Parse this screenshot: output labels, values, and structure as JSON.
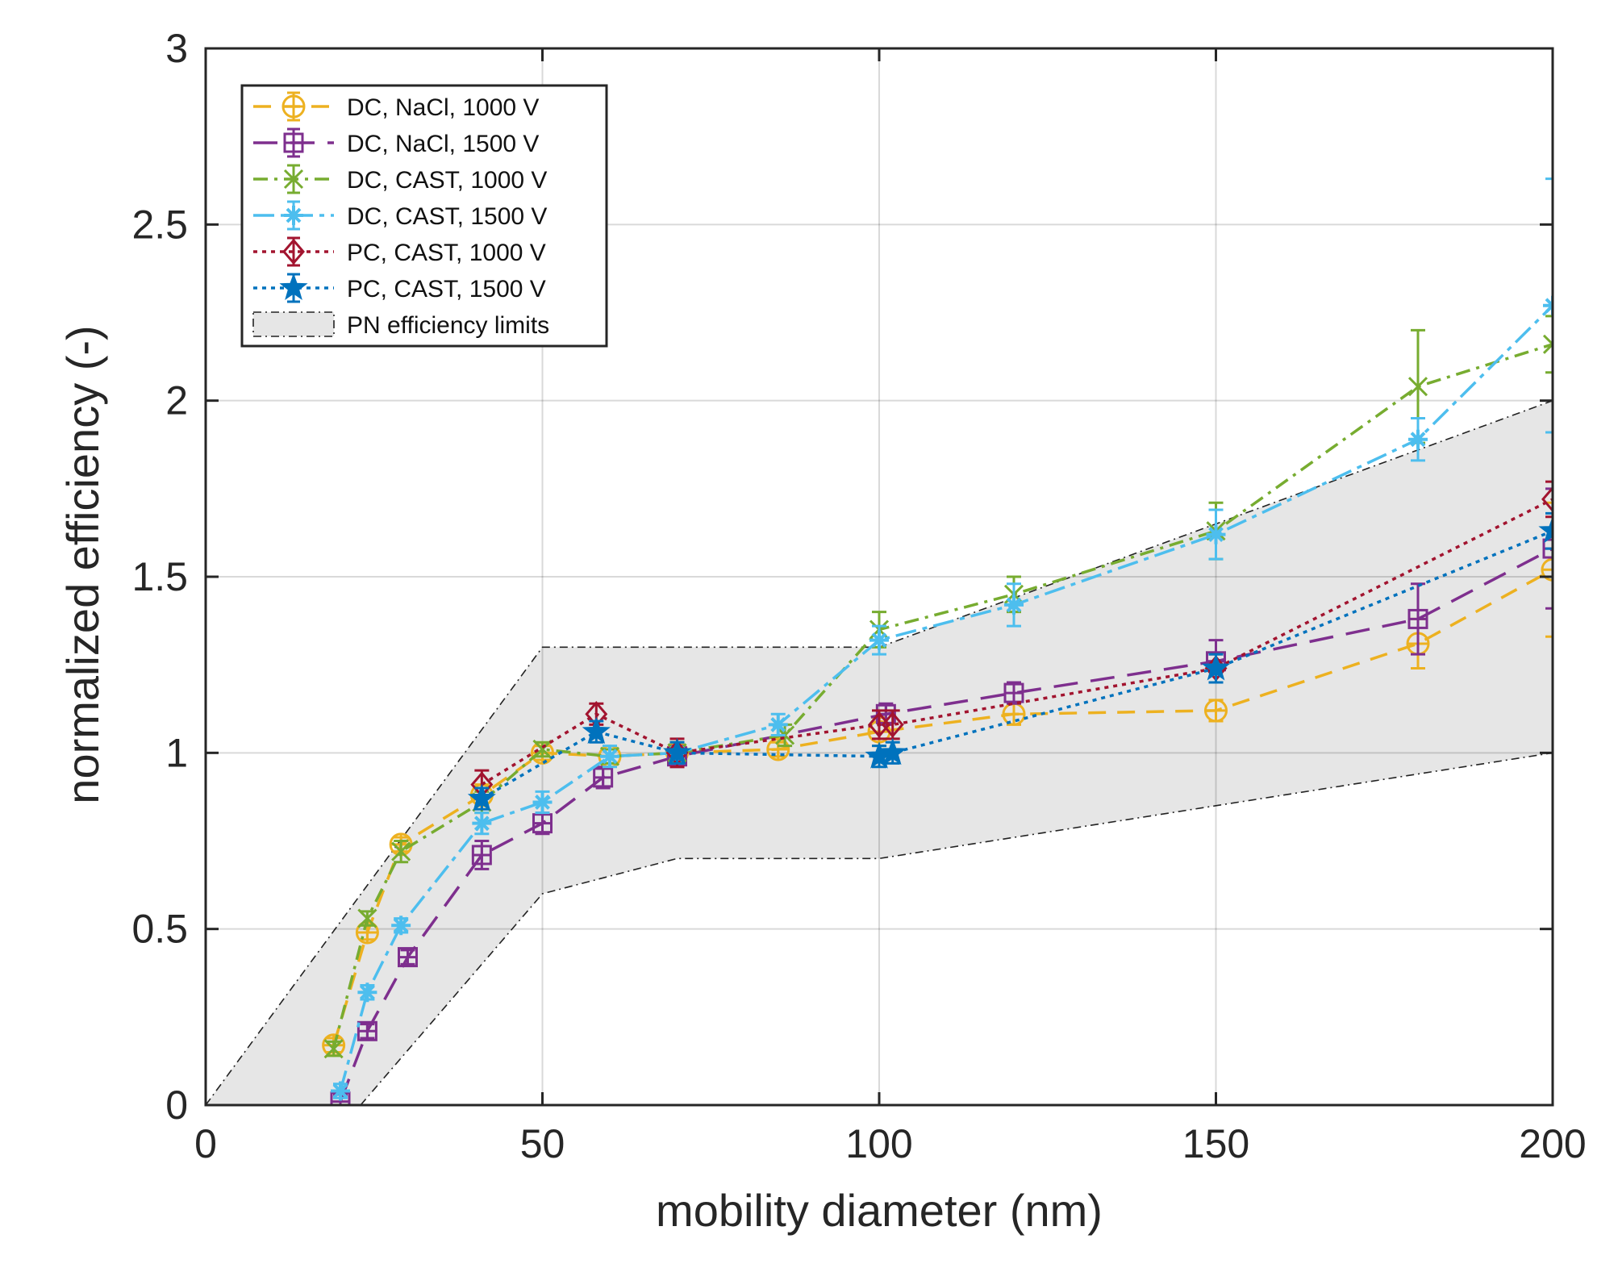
{
  "chart_data": {
    "type": "line",
    "title": "",
    "xlabel": "mobility diameter (nm)",
    "ylabel": "normalized efficiency (-)",
    "xlim": [
      0,
      200
    ],
    "ylim": [
      0,
      3
    ],
    "xticks": [
      0,
      50,
      100,
      150,
      200
    ],
    "yticks": [
      0,
      0.5,
      1,
      1.5,
      2,
      2.5,
      3
    ],
    "xtick_labels": [
      "0",
      "50",
      "100",
      "150",
      "200"
    ],
    "ytick_labels": [
      "0",
      "0.5",
      "1",
      "1.5",
      "2",
      "2.5",
      "3"
    ],
    "grid": true,
    "legend_position": "top-left",
    "band": {
      "name": "PN efficiency limits",
      "color": "#e6e6e6",
      "upper": [
        [
          0,
          0
        ],
        [
          50,
          1.3
        ],
        [
          100,
          1.3
        ],
        [
          200,
          2.0
        ]
      ],
      "lower": [
        [
          23,
          0
        ],
        [
          50,
          0.6
        ],
        [
          70,
          0.7
        ],
        [
          100,
          0.7
        ],
        [
          150,
          0.85
        ],
        [
          200,
          1.0
        ]
      ]
    },
    "series": [
      {
        "name": "DC, NaCl, 1000 V",
        "color": "#EDB120",
        "dash": "22,14",
        "marker": "circle-plus",
        "x": [
          19,
          24,
          29,
          41,
          50,
          60,
          70,
          85,
          100,
          120,
          150,
          180,
          200
        ],
        "y": [
          0.17,
          0.49,
          0.74,
          0.88,
          1.0,
          0.99,
          1.0,
          1.01,
          1.06,
          1.11,
          1.12,
          1.31,
          1.52
        ],
        "err": [
          0.02,
          0.02,
          0.02,
          0.03,
          0.02,
          0.02,
          0.03,
          0.02,
          0.04,
          0.03,
          0.03,
          0.07,
          0.19
        ]
      },
      {
        "name": "DC, NaCl, 1500 V",
        "color": "#7E2F8E",
        "dash": "30,16",
        "marker": "square-plus",
        "x": [
          20,
          24,
          30,
          41,
          50,
          59,
          70,
          101,
          120,
          150,
          180,
          200
        ],
        "y": [
          0.01,
          0.21,
          0.42,
          0.71,
          0.8,
          0.93,
          0.99,
          1.11,
          1.17,
          1.26,
          1.38,
          1.58
        ],
        "err": [
          0.02,
          0.02,
          0.02,
          0.04,
          0.03,
          0.03,
          0.03,
          0.03,
          0.03,
          0.06,
          0.1,
          0.17
        ]
      },
      {
        "name": "DC, CAST, 1000 V",
        "color": "#77AC30",
        "dash": "18,8,4,8",
        "marker": "x",
        "x": [
          19,
          24,
          29,
          41,
          50,
          60,
          70,
          86,
          100,
          120,
          150,
          180,
          200
        ],
        "y": [
          0.16,
          0.53,
          0.72,
          0.86,
          1.01,
          0.99,
          1.0,
          1.05,
          1.35,
          1.45,
          1.63,
          2.04,
          2.16
        ],
        "err": [
          0.02,
          0.02,
          0.03,
          0.03,
          0.02,
          0.02,
          0.03,
          0.03,
          0.05,
          0.05,
          0.08,
          0.16,
          0.08
        ]
      },
      {
        "name": "DC, CAST, 1500 V",
        "color": "#4DBEEE",
        "dash": "26,8,6,8",
        "marker": "star",
        "x": [
          20,
          24,
          29,
          41,
          50,
          60,
          70,
          85,
          100,
          120,
          150,
          180,
          200
        ],
        "y": [
          0.04,
          0.32,
          0.51,
          0.8,
          0.86,
          0.99,
          1.0,
          1.08,
          1.32,
          1.42,
          1.62,
          1.89,
          2.27
        ],
        "err": [
          0.02,
          0.02,
          0.02,
          0.03,
          0.03,
          0.03,
          0.03,
          0.03,
          0.04,
          0.06,
          0.07,
          0.06,
          0.36
        ]
      },
      {
        "name": "PC, CAST, 1000 V",
        "color": "#A2142F",
        "dash": "5,6",
        "marker": "diamond",
        "x": [
          41,
          58,
          70,
          100,
          102,
          150,
          200
        ],
        "y": [
          0.91,
          1.11,
          1.0,
          1.08,
          1.08,
          1.24,
          1.72
        ],
        "err": [
          0.04,
          0.03,
          0.04,
          0.04,
          0.04,
          0.04,
          0.05
        ]
      },
      {
        "name": "PC, CAST, 1500 V",
        "color": "#0072BD",
        "dash": "5,6",
        "marker": "pentagram",
        "x": [
          41,
          58,
          70,
          100,
          102,
          150,
          200
        ],
        "y": [
          0.87,
          1.06,
          1.0,
          0.99,
          1.0,
          1.24,
          1.63
        ],
        "err": [
          0.03,
          0.03,
          0.03,
          0.03,
          0.03,
          0.04,
          0.05
        ]
      }
    ]
  }
}
